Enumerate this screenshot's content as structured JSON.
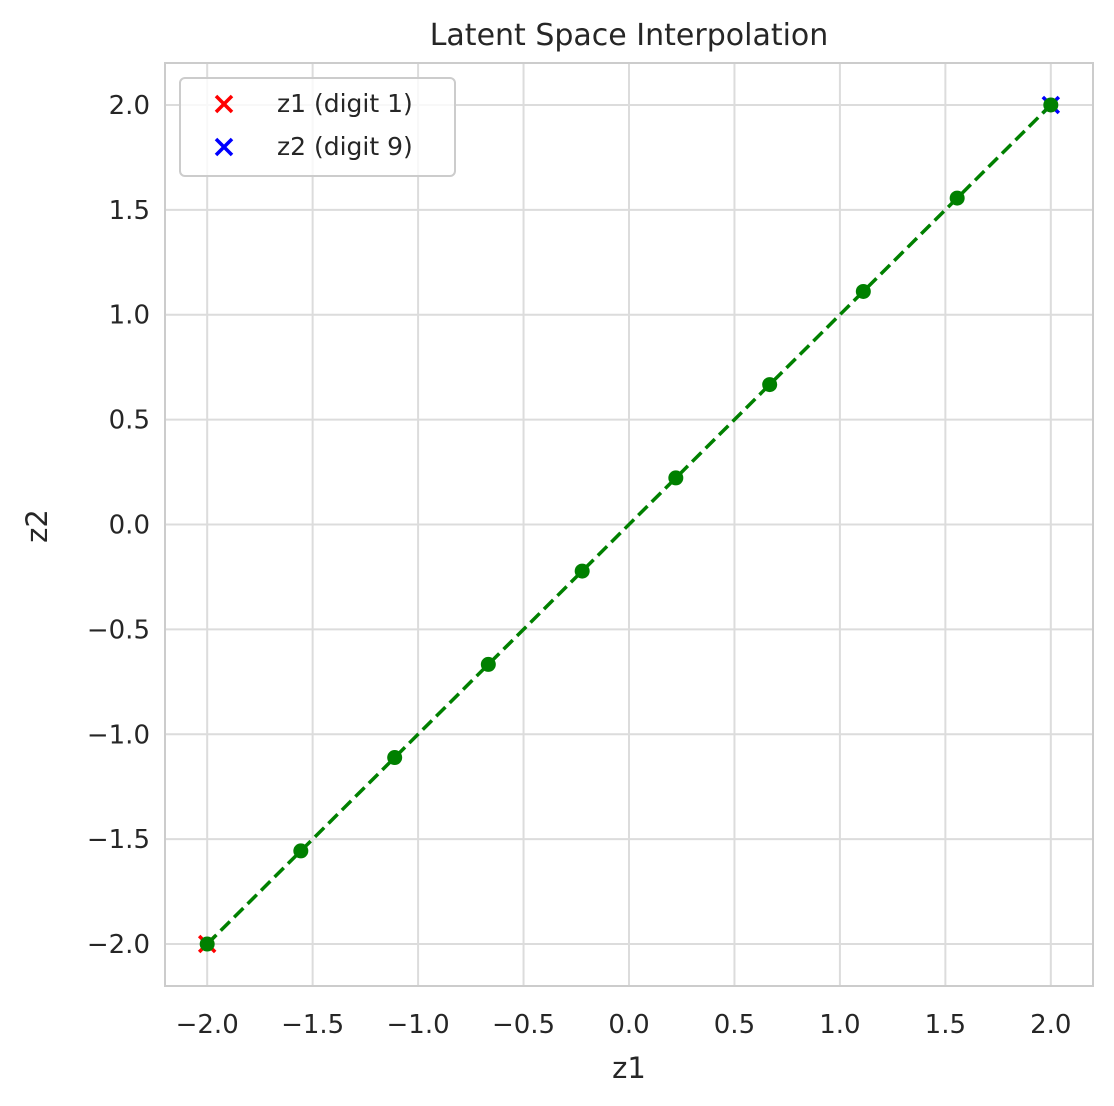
{
  "chart_data": {
    "type": "scatter",
    "title": "Latent Space Interpolation",
    "xlabel": "z1",
    "ylabel": "z2",
    "xlim": [
      -2.2,
      2.2
    ],
    "ylim": [
      -2.2,
      2.2
    ],
    "x_ticks": [
      -2.0,
      -1.5,
      -1.0,
      -0.5,
      0.0,
      0.5,
      1.0,
      1.5,
      2.0
    ],
    "y_ticks": [
      -2.0,
      -1.5,
      -1.0,
      -0.5,
      0.0,
      0.5,
      1.0,
      1.5,
      2.0
    ],
    "x_tick_labels": [
      "−2.0",
      "−1.5",
      "−1.0",
      "−0.5",
      "0.0",
      "0.5",
      "1.0",
      "1.5",
      "2.0"
    ],
    "y_tick_labels": [
      "−2.0",
      "−1.5",
      "−1.0",
      "−0.5",
      "0.0",
      "0.5",
      "1.0",
      "1.5",
      "2.0"
    ],
    "grid": true,
    "legend_position": "top-left",
    "series": [
      {
        "name": "z1 (digit 1)",
        "marker": "x",
        "color": "#ff0000",
        "points": [
          {
            "x": -2.0,
            "y": -2.0
          }
        ]
      },
      {
        "name": "z2 (digit 9)",
        "marker": "x",
        "color": "#0000ff",
        "points": [
          {
            "x": 2.0,
            "y": 2.0
          }
        ]
      },
      {
        "marker": "o",
        "line_style": "dashed",
        "color": "#008000",
        "points": [
          {
            "x": -2.0,
            "y": -2.0
          },
          {
            "x": -1.556,
            "y": -1.556
          },
          {
            "x": -1.111,
            "y": -1.111
          },
          {
            "x": -0.667,
            "y": -0.667
          },
          {
            "x": -0.222,
            "y": -0.222
          },
          {
            "x": 0.222,
            "y": 0.222
          },
          {
            "x": 0.667,
            "y": 0.667
          },
          {
            "x": 1.111,
            "y": 1.111
          },
          {
            "x": 1.556,
            "y": 1.556
          },
          {
            "x": 2.0,
            "y": 2.0
          }
        ]
      }
    ]
  }
}
